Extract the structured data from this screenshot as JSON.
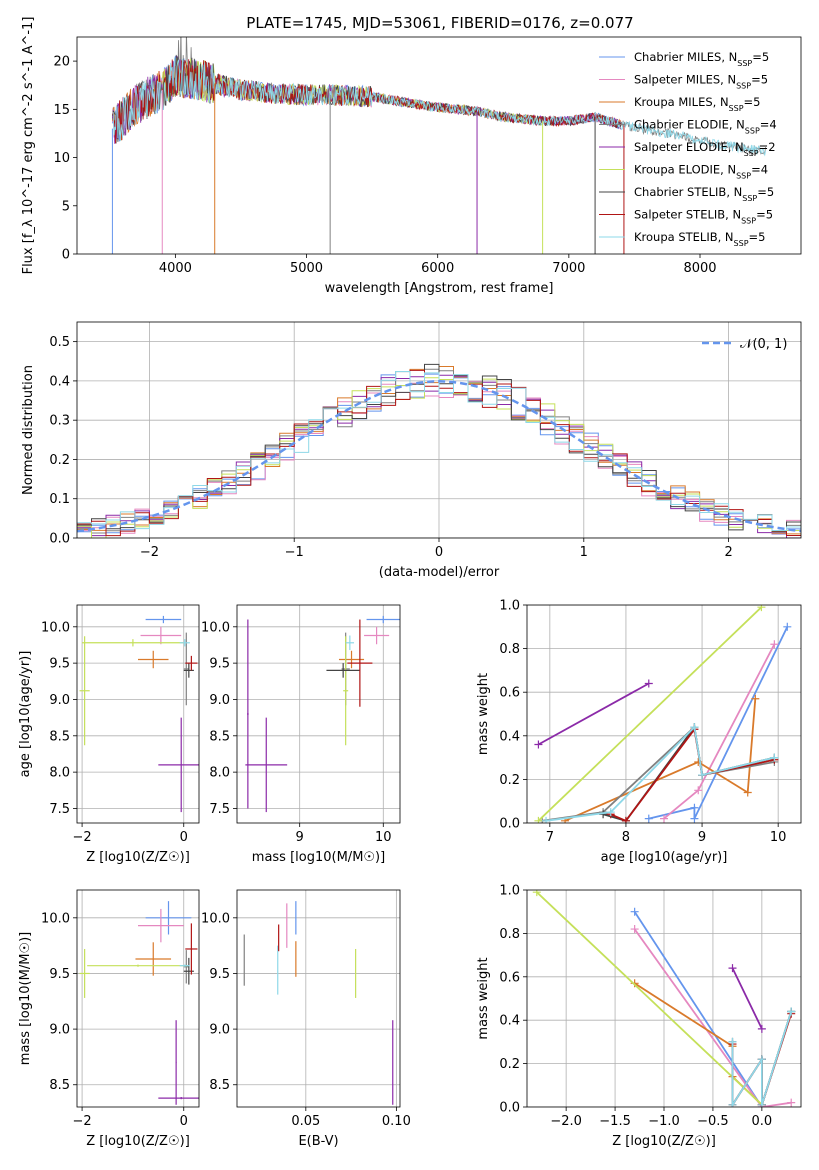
{
  "figure_title": "PLATE=1745, MJD=53061, FIBERID=0176, z=0.077",
  "colors": {
    "Chabrier MILES": "#6495ed",
    "Salpeter MILES": "#e588c0",
    "Kroupa MILES": "#d97a2b",
    "Chabrier ELODIE": "#808080",
    "Salpeter ELODIE": "#8b2aa8",
    "Kroupa ELODIE": "#c5e05a",
    "Chabrier STELIB": "#444444",
    "Salpeter STELIB": "#b01515",
    "Kroupa STELIB": "#8ed8e8",
    "normal": "#6495ed"
  },
  "chart_data": [
    {
      "id": "spectrum",
      "type": "line",
      "title": "PLATE=1745, MJD=53061, FIBERID=0176, z=0.077",
      "xlabel": "wavelength [Angstrom, rest frame]",
      "ylabel": "Flux [f_λ 10^-17 erg cm^-2 s^-1 A^-1]",
      "xlim": [
        3250,
        8770
      ],
      "ylim": [
        0,
        22.5
      ],
      "xticks": [
        4000,
        5000,
        6000,
        7000,
        8000
      ],
      "yticks": [
        0,
        5,
        10,
        15,
        20
      ],
      "grid": false,
      "legend_position": "top-right",
      "legend": [
        {
          "name": "Chabrier MILES",
          "nssp": "5"
        },
        {
          "name": "Salpeter MILES",
          "nssp": "5"
        },
        {
          "name": "Kroupa MILES",
          "nssp": "5"
        },
        {
          "name": "Chabrier ELODIE",
          "nssp": "4"
        },
        {
          "name": "Salpeter ELODIE",
          "nssp": "2"
        },
        {
          "name": "Kroupa ELODIE",
          "nssp": "4"
        },
        {
          "name": "Chabrier STELIB",
          "nssp": "5"
        },
        {
          "name": "Salpeter STELIB",
          "nssp": "5"
        },
        {
          "name": "Kroupa STELIB",
          "nssp": "5"
        }
      ],
      "continuum_x": [
        3520,
        3700,
        3900,
        4000,
        4200,
        4500,
        4800,
        5000,
        5200,
        5500,
        5800,
        6000,
        6300,
        6500,
        6800,
        7000,
        7200,
        7400,
        7600,
        7800,
        8000,
        8300,
        8500
      ],
      "continuum_y": [
        13,
        15.5,
        17,
        18.5,
        18,
        17,
        16.6,
        16.5,
        16.5,
        16.3,
        15.6,
        15.2,
        14.8,
        14.2,
        13.8,
        13.8,
        14.2,
        13.4,
        12.9,
        12.4,
        11.8,
        11,
        10.6
      ],
      "series": [
        {
          "name": "Chabrier MILES",
          "xrange": [
            3520,
            7400
          ]
        },
        {
          "name": "Salpeter MILES",
          "xrange": [
            3520,
            7400
          ]
        },
        {
          "name": "Kroupa MILES",
          "xrange": [
            3520,
            7400
          ]
        },
        {
          "name": "Chabrier ELODIE",
          "xrange": [
            3520,
            8500
          ]
        },
        {
          "name": "Salpeter ELODIE",
          "xrange": [
            3520,
            7400
          ]
        },
        {
          "name": "Kroupa ELODIE",
          "xrange": [
            3900,
            6800
          ]
        },
        {
          "name": "Chabrier STELIB",
          "xrange": [
            3520,
            7400
          ]
        },
        {
          "name": "Salpeter STELIB",
          "xrange": [
            3520,
            7400
          ]
        },
        {
          "name": "Kroupa STELIB",
          "xrange": [
            3520,
            8500
          ]
        }
      ],
      "dropouts": [
        3520,
        3900,
        4300,
        5180,
        6300,
        6800,
        7200,
        7420
      ]
    },
    {
      "id": "residuals",
      "type": "area",
      "xlabel": "(data-model)/error",
      "ylabel": "Normed distribution",
      "xlim": [
        -2.5,
        2.5
      ],
      "ylim": [
        0,
        0.55
      ],
      "xticks": [
        -2,
        -1,
        0,
        1,
        2
      ],
      "yticks": [
        0,
        0.1,
        0.2,
        0.3,
        0.4,
        0.5
      ],
      "grid": true,
      "bin_width": 0.1,
      "legend_position": "top-right",
      "normal_label": "𝒩(0, 1)",
      "normal": {
        "mean": 0,
        "sigma": 1
      },
      "jitter_amplitude": 0.045
    },
    {
      "id": "age-vs-Z",
      "type": "scatter",
      "xlabel": "Z [log10(Z/Z☉)]",
      "ylabel": "age  [log10(age/yr)]",
      "xlim": [
        -2.1,
        0.3
      ],
      "ylim": [
        7.3,
        10.3
      ],
      "xticks": [
        -2,
        0
      ],
      "yticks": [
        7.5,
        8.0,
        8.5,
        9.0,
        9.5,
        10.0
      ],
      "grid": true,
      "points": [
        {
          "series": "Chabrier MILES",
          "x": -0.4,
          "y": 10.1,
          "xerr": 0.35,
          "yerr": 0.05
        },
        {
          "series": "Salpeter MILES",
          "x": -0.45,
          "y": 9.88,
          "xerr": 0.4,
          "yerr": 0.12
        },
        {
          "series": "Kroupa MILES",
          "x": -0.6,
          "y": 9.55,
          "xerr": 0.3,
          "yerr": 0.12
        },
        {
          "series": "Chabrier ELODIE",
          "x": 0.05,
          "y": 9.42,
          "xerr": 0.05,
          "yerr": 0.5
        },
        {
          "series": "Salpeter ELODIE",
          "x": -0.05,
          "y": 8.1,
          "xerr": 0.45,
          "yerr": 0.65
        },
        {
          "series": "Kroupa ELODIE",
          "x": -1.95,
          "y": 9.12,
          "xerr": 0.1,
          "yerr": 0.75
        },
        {
          "series": "Kroupa ELODIE",
          "x": -1.0,
          "y": 9.78,
          "xerr": 1.0,
          "yerr": 0.05
        },
        {
          "series": "Chabrier STELIB",
          "x": 0.1,
          "y": 9.4,
          "xerr": 0.1,
          "yerr": 0.1
        },
        {
          "series": "Salpeter STELIB",
          "x": 0.15,
          "y": 9.5,
          "xerr": 0.12,
          "yerr": 0.1
        },
        {
          "series": "Kroupa STELIB",
          "x": 0.02,
          "y": 9.78,
          "xerr": 0.1,
          "yerr": 0.05
        }
      ]
    },
    {
      "id": "age-vs-mass",
      "type": "scatter",
      "xlabel": "mass [log10(M/M☉)]",
      "ylabel": "",
      "xlim": [
        8.25,
        10.2
      ],
      "ylim": [
        7.3,
        10.3
      ],
      "xticks": [
        9,
        10
      ],
      "yticks": [
        7.5,
        8.0,
        8.5,
        9.0,
        9.5,
        10.0
      ],
      "grid": true,
      "points": [
        {
          "series": "Chabrier MILES",
          "x": 10.0,
          "y": 10.1,
          "xerr": 0.2,
          "yerr": 0.05
        },
        {
          "series": "Salpeter MILES",
          "x": 9.92,
          "y": 9.88,
          "xerr": 0.15,
          "yerr": 0.12
        },
        {
          "series": "Kroupa MILES",
          "x": 9.62,
          "y": 9.55,
          "xerr": 0.15,
          "yerr": 0.12
        },
        {
          "series": "Chabrier ELODIE",
          "x": 9.55,
          "y": 9.42,
          "xerr": 0.05,
          "yerr": 0.5
        },
        {
          "series": "Salpeter ELODIE",
          "x": 8.6,
          "y": 8.1,
          "xerr": 0.25,
          "yerr": 0.65
        },
        {
          "series": "Salpeter ELODIE",
          "x": 8.38,
          "y": 8.8,
          "xerr": 0.01,
          "yerr": 1.3
        },
        {
          "series": "Kroupa ELODIE",
          "x": 9.55,
          "y": 9.12,
          "xerr": 0.03,
          "yerr": 0.75
        },
        {
          "series": "Chabrier STELIB",
          "x": 9.52,
          "y": 9.4,
          "xerr": 0.2,
          "yerr": 0.1
        },
        {
          "series": "Salpeter STELIB",
          "x": 9.72,
          "y": 9.5,
          "xerr": 0.15,
          "yerr": 0.6
        },
        {
          "series": "Kroupa STELIB",
          "x": 9.6,
          "y": 9.78,
          "xerr": 0.05,
          "yerr": 0.1
        }
      ]
    },
    {
      "id": "weight-vs-age",
      "type": "line",
      "xlabel": "age  [log10(age/yr)]",
      "ylabel": "mass weight",
      "xlim": [
        6.7,
        10.3
      ],
      "ylim": [
        0,
        1.0
      ],
      "xticks": [
        7,
        8,
        9,
        10
      ],
      "yticks": [
        0.0,
        0.2,
        0.4,
        0.6,
        0.8,
        1.0
      ],
      "grid": true,
      "series": [
        {
          "name": "Chabrier MILES",
          "x": [
            8.3,
            8.9,
            8.9,
            10.12
          ],
          "y": [
            0.02,
            0.07,
            0.02,
            0.9
          ]
        },
        {
          "name": "Salpeter MILES",
          "x": [
            8.5,
            8.95,
            9.95
          ],
          "y": [
            0.02,
            0.15,
            0.82
          ]
        },
        {
          "name": "Kroupa MILES",
          "x": [
            7.2,
            8.95,
            9.6,
            9.7
          ],
          "y": [
            0.01,
            0.28,
            0.14,
            0.57
          ]
        },
        {
          "name": "Chabrier ELODIE",
          "x": [
            6.9,
            7.7,
            8.9,
            9.0,
            9.95
          ],
          "y": [
            0.01,
            0.05,
            0.44,
            0.22,
            0.28
          ]
        },
        {
          "name": "Salpeter ELODIE",
          "x": [
            6.85,
            8.3
          ],
          "y": [
            0.36,
            0.64
          ]
        },
        {
          "name": "Kroupa ELODIE",
          "x": [
            6.85,
            9.78
          ],
          "y": [
            0.01,
            0.99
          ]
        },
        {
          "name": "Chabrier STELIB",
          "x": [
            7.7,
            8.0,
            8.9,
            9.0,
            9.95
          ],
          "y": [
            0.04,
            0.01,
            0.44,
            0.22,
            0.3
          ]
        },
        {
          "name": "Salpeter STELIB",
          "x": [
            7.8,
            8.0,
            8.9,
            9.0,
            9.95
          ],
          "y": [
            0.04,
            0.01,
            0.43,
            0.22,
            0.29
          ]
        },
        {
          "name": "Kroupa STELIB",
          "x": [
            6.95,
            7.8,
            8.9,
            9.0,
            9.95
          ],
          "y": [
            0.01,
            0.05,
            0.44,
            0.22,
            0.3
          ]
        }
      ]
    },
    {
      "id": "mass-vs-Z",
      "type": "scatter",
      "xlabel": "Z [log10(Z/Z☉)]",
      "ylabel": "mass [log10(M/M☉)]",
      "xlim": [
        -2.1,
        0.3
      ],
      "ylim": [
        8.3,
        10.25
      ],
      "xticks": [
        -2,
        0
      ],
      "yticks": [
        8.5,
        9.0,
        9.5,
        10.0
      ],
      "grid": true,
      "points": [
        {
          "series": "Chabrier MILES",
          "x": -0.3,
          "y": 10.0,
          "xerr": 0.45,
          "yerr": 0.15
        },
        {
          "series": "Salpeter MILES",
          "x": -0.45,
          "y": 9.93,
          "xerr": 0.45,
          "yerr": 0.15
        },
        {
          "series": "Kroupa MILES",
          "x": -0.6,
          "y": 9.63,
          "xerr": 0.35,
          "yerr": 0.15
        },
        {
          "series": "Chabrier ELODIE",
          "x": 0.05,
          "y": 9.56,
          "xerr": 0.05,
          "yerr": 0.15
        },
        {
          "series": "Salpeter ELODIE",
          "x": -0.05,
          "y": 8.38,
          "xerr": 0.45,
          "yerr": 0.01
        },
        {
          "series": "Salpeter ELODIE",
          "x": -0.15,
          "y": 8.7,
          "xerr": 0.01,
          "yerr": 0.38
        },
        {
          "series": "Kroupa ELODIE",
          "x": -1.95,
          "y": 9.5,
          "xerr": 0.1,
          "yerr": 0.22
        },
        {
          "series": "Kroupa ELODIE",
          "x": -0.9,
          "y": 9.57,
          "xerr": 1.0,
          "yerr": 0.01
        },
        {
          "series": "Chabrier STELIB",
          "x": 0.1,
          "y": 9.52,
          "xerr": 0.1,
          "yerr": 0.12
        },
        {
          "series": "Salpeter STELIB",
          "x": 0.15,
          "y": 9.72,
          "xerr": 0.12,
          "yerr": 0.23
        },
        {
          "series": "Kroupa STELIB",
          "x": 0.02,
          "y": 9.57,
          "xerr": 0.1,
          "yerr": 0.01
        }
      ]
    },
    {
      "id": "mass-vs-ebv",
      "type": "scatter",
      "xlabel": "E(B-V)",
      "ylabel": "",
      "xlim": [
        0.012,
        0.102
      ],
      "ylim": [
        8.3,
        10.25
      ],
      "xticks": [
        0.05,
        0.1
      ],
      "xtick_labels": [
        "0.05",
        "0.10"
      ],
      "yticks": [
        8.5,
        9.0,
        9.5,
        10.0
      ],
      "grid": true,
      "points": [
        {
          "series": "Chabrier ELODIE",
          "x": 0.016,
          "y": 9.62,
          "xerr": 0,
          "yerr": 0.23
        },
        {
          "series": "Kroupa STELIB",
          "x": 0.0345,
          "y": 9.53,
          "xerr": 0,
          "yerr": 0.22
        },
        {
          "series": "Salpeter STELIB",
          "x": 0.035,
          "y": 9.82,
          "xerr": 0,
          "yerr": 0.12
        },
        {
          "series": "Salpeter MILES",
          "x": 0.0395,
          "y": 9.93,
          "xerr": 0,
          "yerr": 0.2
        },
        {
          "series": "Chabrier MILES",
          "x": 0.0445,
          "y": 10.0,
          "xerr": 0,
          "yerr": 0.15
        },
        {
          "series": "Kroupa MILES",
          "x": 0.0445,
          "y": 9.63,
          "xerr": 0,
          "yerr": 0.16
        },
        {
          "series": "Kroupa ELODIE",
          "x": 0.0775,
          "y": 9.5,
          "xerr": 0,
          "yerr": 0.22
        },
        {
          "series": "Salpeter ELODIE",
          "x": 0.098,
          "y": 8.7,
          "xerr": 0,
          "yerr": 0.38
        }
      ]
    },
    {
      "id": "weight-vs-Z",
      "type": "line",
      "xlabel": "Z [log10(Z/Z☉)]",
      "ylabel": "mass weight",
      "xlim": [
        -2.4,
        0.4
      ],
      "ylim": [
        0,
        1.0
      ],
      "xticks": [
        -2.0,
        -1.5,
        -1.0,
        -0.5,
        0.0
      ],
      "xtick_labels": [
        "−2.0",
        "−1.5",
        "−1.0",
        "−0.5",
        "0.0"
      ],
      "yticks": [
        0.0,
        0.2,
        0.4,
        0.6,
        0.8,
        1.0
      ],
      "grid": true,
      "series": [
        {
          "name": "Chabrier MILES",
          "x": [
            -1.3,
            0.0
          ],
          "y": [
            0.9,
            0.0
          ]
        },
        {
          "name": "Salpeter MILES",
          "x": [
            -1.3,
            0.0,
            0.3
          ],
          "y": [
            0.82,
            0.0,
            0.02
          ]
        },
        {
          "name": "Kroupa MILES",
          "x": [
            -1.3,
            -0.3,
            -0.3,
            0.0
          ],
          "y": [
            0.57,
            0.28,
            0.14,
            0.01
          ]
        },
        {
          "name": "Chabrier ELODIE",
          "x": [
            0.0,
            0.0,
            0.3
          ],
          "y": [
            0.22,
            0.01,
            0.44
          ]
        },
        {
          "name": "Salpeter ELODIE",
          "x": [
            -0.3,
            0.0
          ],
          "y": [
            0.64,
            0.36
          ]
        },
        {
          "name": "Kroupa ELODIE",
          "x": [
            -2.3,
            0.0
          ],
          "y": [
            0.99,
            0.01
          ]
        },
        {
          "name": "Chabrier STELIB",
          "x": [
            -0.3,
            -0.3,
            0.0,
            0.0,
            0.3
          ],
          "y": [
            0.3,
            0.01,
            0.22,
            0.01,
            0.44
          ]
        },
        {
          "name": "Salpeter STELIB",
          "x": [
            -0.3,
            -0.3,
            0.0,
            0.0,
            0.3
          ],
          "y": [
            0.29,
            0.01,
            0.22,
            0.01,
            0.43
          ]
        },
        {
          "name": "Kroupa STELIB",
          "x": [
            -0.3,
            -0.3,
            0.0,
            0.0,
            0.3
          ],
          "y": [
            0.3,
            0.01,
            0.22,
            0.01,
            0.44
          ]
        }
      ]
    }
  ]
}
